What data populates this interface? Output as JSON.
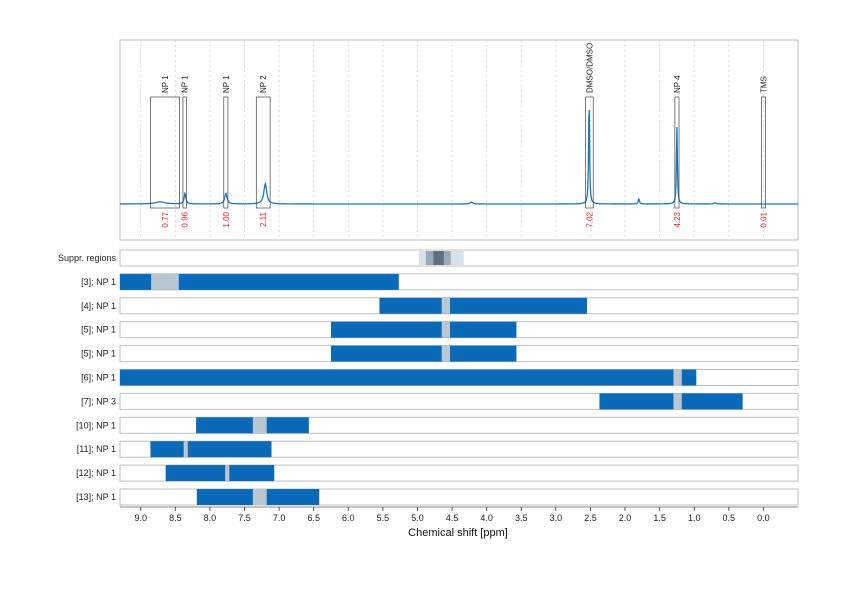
{
  "colors": {
    "spectrum": "#1f77b4",
    "bar": "#0a6ab8",
    "excluded": "#b9c7d3",
    "suppr_light": "#d9e1e8",
    "suppr_mid": "#9aa9b6",
    "suppr_dark": "#5f6f7e",
    "integral_text": "#d62728",
    "frame": "#bfbfbf",
    "grid": "#cfcfcf"
  },
  "chart_data": {
    "type": "nmr-spectrum",
    "xlabel": "Chemical shift [ppm]",
    "xlim": [
      9.3,
      -0.5
    ],
    "xticks": [
      "9.0",
      "8.5",
      "8.0",
      "7.5",
      "7.0",
      "6.5",
      "6.0",
      "5.5",
      "5.0",
      "4.5",
      "4.0",
      "3.5",
      "3.0",
      "2.5",
      "2.0",
      "1.5",
      "1.0",
      "0.5",
      "0.0"
    ],
    "peaks": [
      {
        "ppm": 8.72,
        "height": 0.02,
        "width": 0.08
      },
      {
        "ppm": 8.36,
        "height": 0.1,
        "width": 0.015
      },
      {
        "ppm": 7.77,
        "height": 0.1,
        "width": 0.02
      },
      {
        "ppm": 7.2,
        "height": 0.19,
        "width": 0.025
      },
      {
        "ppm": 4.22,
        "height": 0.02,
        "width": 0.02
      },
      {
        "ppm": 2.52,
        "height": 1.0,
        "width": 0.008
      },
      {
        "ppm": 1.8,
        "height": 0.05,
        "width": 0.01
      },
      {
        "ppm": 1.25,
        "height": 0.72,
        "width": 0.008
      },
      {
        "ppm": 0.7,
        "height": 0.01,
        "width": 0.02
      }
    ],
    "annotations": [
      {
        "label": "NP 1",
        "start": 8.86,
        "end": 8.44,
        "box_top": 0.22,
        "integral": "0.77"
      },
      {
        "label": "NP 1",
        "start": 8.39,
        "end": 8.34,
        "box_top": 0.22,
        "integral": "0.96"
      },
      {
        "label": "NP 1",
        "start": 7.8,
        "end": 7.74,
        "box_top": 0.22,
        "integral": "1.00"
      },
      {
        "label": "NP 2",
        "start": 7.33,
        "end": 7.13,
        "box_top": 0.22,
        "integral": "2.11"
      },
      {
        "label": "DMSO/DMSO",
        "start": 2.57,
        "end": 2.46,
        "box_top": 0.22,
        "integral": "7.02"
      },
      {
        "label": "NP 4",
        "start": 1.28,
        "end": 1.22,
        "box_top": 0.22,
        "integral": "4.23"
      },
      {
        "label": "TMS",
        "start": 0.03,
        "end": -0.03,
        "box_top": 0.22,
        "integral": "0.01"
      }
    ],
    "suppressed_regions": [
      {
        "start": 4.98,
        "end": 4.33,
        "shade": "light"
      },
      {
        "start": 4.88,
        "end": 4.52,
        "shade": "mid"
      },
      {
        "start": 4.77,
        "end": 4.62,
        "shade": "dark"
      }
    ],
    "rows": [
      {
        "label": "Suppr. regions",
        "type": "suppressed"
      },
      {
        "label": "[3]; NP 1",
        "bar": [
          9.3,
          5.27
        ],
        "excluded": [
          [
            8.85,
            8.45
          ]
        ]
      },
      {
        "label": "[4]; NP 1",
        "bar": [
          5.55,
          2.55
        ],
        "excluded": [
          [
            4.65,
            4.53
          ]
        ]
      },
      {
        "label": "[5]; NP 1",
        "bar": [
          6.25,
          3.57
        ],
        "excluded": [
          [
            4.65,
            4.53
          ]
        ]
      },
      {
        "label": "[5]; NP 1",
        "bar": [
          6.25,
          3.57
        ],
        "excluded": [
          [
            4.65,
            4.53
          ]
        ]
      },
      {
        "label": "[6]; NP 1",
        "bar": [
          9.3,
          0.97
        ],
        "excluded": [
          [
            1.3,
            1.18
          ]
        ]
      },
      {
        "label": "[7]; NP 3",
        "bar": [
          2.37,
          0.3
        ],
        "excluded": [
          [
            1.3,
            1.18
          ]
        ]
      },
      {
        "label": "[10]; NP 1",
        "bar": [
          8.2,
          6.57
        ],
        "excluded": [
          [
            7.38,
            7.18
          ]
        ]
      },
      {
        "label": "[11]; NP 1",
        "bar": [
          8.86,
          7.11
        ],
        "excluded": [
          [
            8.38,
            8.32
          ]
        ]
      },
      {
        "label": "[12]; NP 1",
        "bar": [
          8.64,
          7.07
        ],
        "excluded": [
          [
            7.78,
            7.72
          ]
        ]
      },
      {
        "label": "[13]; NP 1",
        "bar": [
          8.19,
          6.42
        ],
        "excluded": [
          [
            7.38,
            7.18
          ]
        ]
      }
    ]
  }
}
